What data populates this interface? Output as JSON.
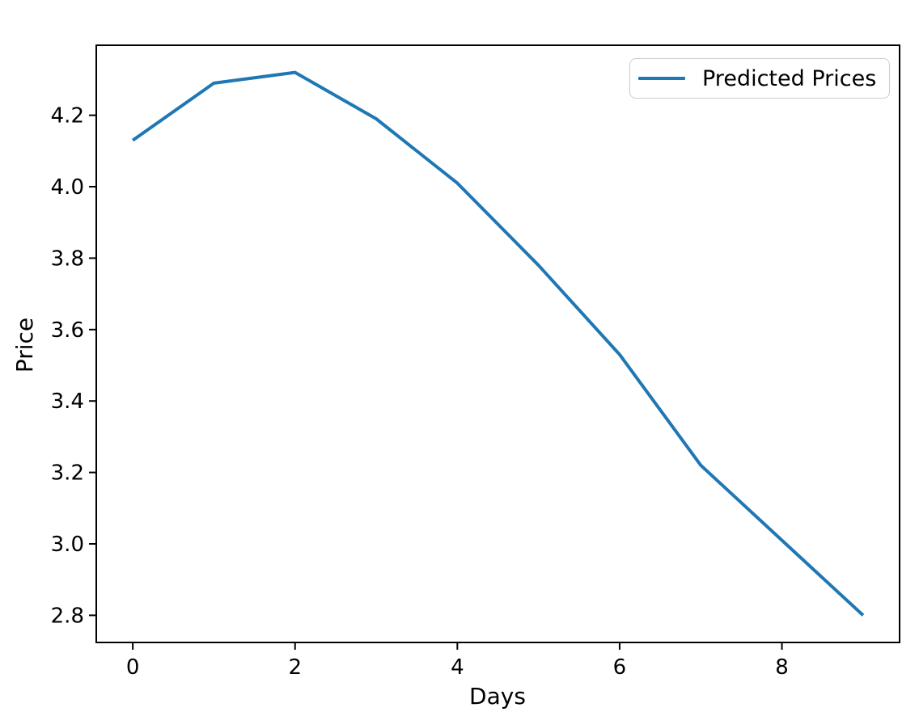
{
  "figure": {
    "background": "#ffffff",
    "legend": {
      "label": "Predicted Prices",
      "line_color": "#1f77b4",
      "position": "upper right"
    },
    "x_axis": {
      "label": "Days",
      "tick_labels": [
        "0",
        "2",
        "4",
        "6",
        "8"
      ]
    },
    "y_axis": {
      "label": "Price",
      "tick_labels": [
        "2.8",
        "3.0",
        "3.2",
        "3.4",
        "3.6",
        "3.8",
        "4.0",
        "4.2"
      ]
    }
  },
  "chart_data": {
    "type": "line",
    "title": "",
    "xlabel": "Days",
    "ylabel": "Price",
    "x": [
      0,
      1,
      2,
      3,
      4,
      5,
      6,
      7,
      8,
      9
    ],
    "series": [
      {
        "name": "Predicted Prices",
        "color": "#1f77b4",
        "values": [
          4.13,
          4.29,
          4.32,
          4.19,
          4.01,
          3.78,
          3.53,
          3.22,
          3.01,
          2.8
        ]
      }
    ],
    "xticks": [
      0,
      2,
      4,
      6,
      8
    ],
    "yticks": [
      2.8,
      3.0,
      3.2,
      3.4,
      3.6,
      3.8,
      4.0,
      4.2
    ],
    "xlim": [
      -0.45,
      9.45
    ],
    "ylim": [
      2.724,
      4.396
    ],
    "grid": false,
    "legend_position": "upper right",
    "axis_color": "#000000"
  }
}
